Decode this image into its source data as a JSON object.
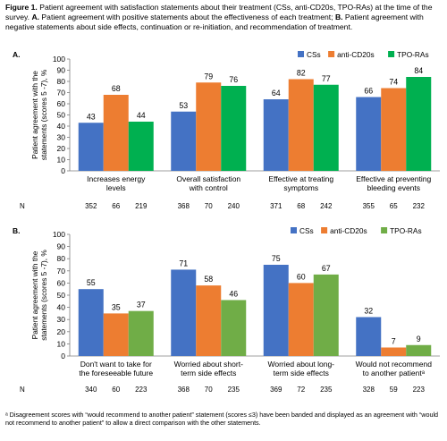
{
  "caption": {
    "figure_label": "Figure 1.",
    "line1": " Patient agreement with satisfaction statements about their treatment (CSs, anti-CD20s, TPO-RAs) at the time of the survey. ",
    "a_label": "A.",
    "a_text": " Patient agreement with positive statements about the effectiveness of each treatment; ",
    "b_label": "B.",
    "b_text": " Patient agreement with negative statements about side effects, continuation or re-initiation, and recommendation of treatment."
  },
  "panels": {
    "a_label": "A.",
    "b_label": "B.",
    "n_label": "N"
  },
  "footnote": "ᵃ Disagreement scores with “would recommend to another patient” statement (scores ≤3) have been banded and displayed as an agreement with “would not recommend to another patient” to allow a direct comparison with the other statements.",
  "colors": {
    "CSs": "#4472c4",
    "anti-CD20s": "#ed7d31",
    "TPO-RAs-a": "#00b050",
    "TPO-RAs-b": "#70ad47"
  },
  "chart_data": [
    {
      "type": "bar",
      "title": "",
      "ylabel": "Patient agreement with the statements (scores 5 -7), %",
      "ylim": [
        0,
        100
      ],
      "yticks": [
        0,
        10,
        20,
        30,
        40,
        50,
        60,
        70,
        80,
        90,
        100
      ],
      "legend_position": "top-right",
      "categories": [
        [
          "Increases energy",
          "levels"
        ],
        [
          "Overall satisfaction",
          "with control"
        ],
        [
          "Effective at treating",
          "symptoms"
        ],
        [
          "Effective at preventing",
          "bleeding events"
        ]
      ],
      "series": [
        {
          "name": "CSs",
          "color": "#4472c4",
          "values": [
            43,
            53,
            64,
            66
          ],
          "n": [
            352,
            368,
            371,
            355
          ]
        },
        {
          "name": "anti-CD20s",
          "color": "#ed7d31",
          "values": [
            68,
            79,
            82,
            74
          ],
          "n": [
            66,
            70,
            68,
            65
          ]
        },
        {
          "name": "TPO-RAs",
          "color": "#00b050",
          "values": [
            44,
            76,
            77,
            84
          ],
          "n": [
            219,
            240,
            242,
            232
          ]
        }
      ]
    },
    {
      "type": "bar",
      "title": "",
      "ylabel": "Patient agreement with the statements (scores 5 -7), %",
      "ylim": [
        0,
        100
      ],
      "yticks": [
        0,
        10,
        20,
        30,
        40,
        50,
        60,
        70,
        80,
        90,
        100
      ],
      "legend_position": "top-right",
      "categories": [
        [
          "Don't want to take for",
          "the foreseeable future"
        ],
        [
          "Worried about short-",
          "term side effects"
        ],
        [
          "Worried about long-",
          "term side effects"
        ],
        [
          "Would not recommend",
          "to another patientᵃ"
        ]
      ],
      "series": [
        {
          "name": "CSs",
          "color": "#4472c4",
          "values": [
            55,
            71,
            75,
            32
          ],
          "n": [
            340,
            368,
            369,
            328
          ]
        },
        {
          "name": "anti-CD20s",
          "color": "#ed7d31",
          "values": [
            35,
            58,
            60,
            7
          ],
          "n": [
            60,
            70,
            72,
            59
          ]
        },
        {
          "name": "TPO-RAs",
          "color": "#70ad47",
          "values": [
            37,
            46,
            67,
            9
          ],
          "n": [
            223,
            235,
            235,
            223
          ]
        }
      ]
    }
  ]
}
